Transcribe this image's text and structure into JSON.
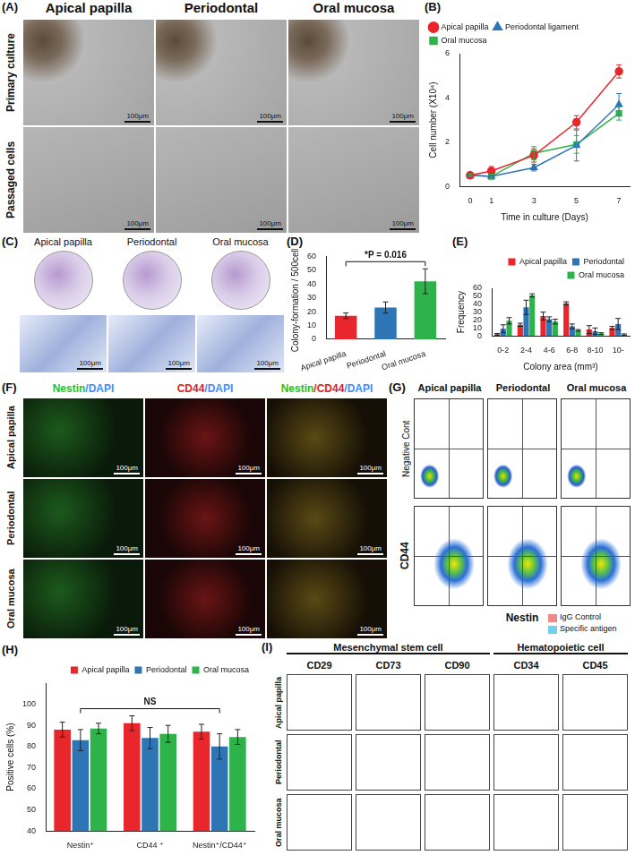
{
  "figure": {
    "A": {
      "title": "(A)",
      "columns": [
        "Apical papilla",
        "Periodontal",
        "Oral mucosa"
      ],
      "rows": [
        "Primary culture",
        "Passaged cells"
      ],
      "scale_bar": "100μm"
    },
    "C": {
      "title": "(C)",
      "columns": [
        "Apical papilla",
        "Periodontal",
        "Oral mucosa"
      ],
      "scale_bar": "100μm"
    },
    "F": {
      "title": "(F)",
      "headers": [
        [
          {
            "text": "Nestin",
            "color": "#22c322"
          },
          {
            "text": "/DAPI",
            "color": "#3f8cff"
          }
        ],
        [
          {
            "text": "CD44",
            "color": "#e02020"
          },
          {
            "text": "/DAPI",
            "color": "#3f8cff"
          }
        ],
        [
          {
            "text": "Nestin",
            "color": "#22c322"
          },
          {
            "text": "/CD44",
            "color": "#e02020"
          },
          {
            "text": "/DAPI",
            "color": "#3f8cff"
          }
        ]
      ],
      "rows": [
        "Apical papilla",
        "Periodontal",
        "Oral mucosa"
      ],
      "scale_bar": "100μm"
    },
    "G": {
      "title": "(G)",
      "columns": [
        "Apical papilla",
        "Periodontal",
        "Oral mucosa"
      ],
      "row_label": "Negative Cont",
      "y_label": "CD44",
      "x_label": "Nestin"
    },
    "I": {
      "title": "(I)",
      "groups": [
        {
          "text": "Mesenchymal stem cell",
          "columns": [
            "CD29",
            "CD73",
            "CD90"
          ]
        },
        {
          "text": "Hematopoietic cell",
          "columns": [
            "CD34",
            "CD45"
          ]
        }
      ],
      "rows": [
        "Apical papilla",
        "Periodontal",
        "Oral mucosa"
      ],
      "key": [
        {
          "name": "IgG Control",
          "color": "#f08a8a"
        },
        {
          "name": "Specific antigen",
          "color": "#6fd0f0"
        }
      ]
    }
  },
  "chart_data": [
    {
      "type": "line",
      "title": "(B)",
      "x_label": "Time in culture (Days)",
      "y_label": "Cell number (X10⁴)",
      "x": [
        0,
        1,
        3,
        5,
        7
      ],
      "xlim": [
        -0.5,
        7.5
      ],
      "xticks": [
        0,
        1,
        3,
        5,
        7
      ],
      "ylim": [
        0,
        6
      ],
      "yticks": [
        0,
        2,
        4,
        6
      ],
      "grid": false,
      "legend": "upper left",
      "series": [
        {
          "name": "Apical papilla",
          "color": "#e8262b",
          "marker": "circle",
          "values": [
            0.5,
            0.7,
            1.4,
            2.9,
            5.2
          ],
          "errors": [
            0.05,
            0.2,
            0.3,
            0.3,
            0.3
          ]
        },
        {
          "name": "Periodontal ligament",
          "color": "#2e75b6",
          "marker": "triangle",
          "values": [
            0.5,
            0.45,
            0.85,
            1.85,
            3.7
          ],
          "errors": [
            0.05,
            0.1,
            0.15,
            0.7,
            0.5
          ]
        },
        {
          "name": "Oral mucosa",
          "color": "#2db34a",
          "marker": "rect",
          "values": [
            0.5,
            0.45,
            1.5,
            1.9,
            3.3
          ],
          "errors": [
            0.05,
            0.1,
            0.3,
            0.4,
            0.3
          ]
        }
      ]
    },
    {
      "type": "bar",
      "title": "(D)",
      "categories": [
        "Apical papilla",
        "Periodontal",
        "Oral mucosa"
      ],
      "values": [
        17,
        23,
        42
      ],
      "errors": [
        2,
        4,
        9
      ],
      "colors": [
        "#e8262b",
        "#2e75b6",
        "#2db34a"
      ],
      "y_label": "Colony-formation / 500cells",
      "ylim": [
        0,
        60
      ],
      "yticks": [
        0,
        10,
        20,
        30,
        40,
        50,
        60
      ],
      "grid": false,
      "annotations": [
        {
          "text": "*P = 0.016",
          "from": "Apical papilla",
          "to": "Oral mucosa"
        }
      ]
    },
    {
      "type": "bar",
      "title": "(E)",
      "categories": [
        "0-2",
        "2-4",
        "4-6",
        "6-8",
        "8-10",
        "10-"
      ],
      "x_label": "Colony area (mm³)",
      "y_label": "Frequency",
      "ylim": [
        0,
        60
      ],
      "yticks": [
        0,
        10,
        20,
        30,
        40,
        50,
        60
      ],
      "grid": false,
      "legend": "upper right",
      "series": [
        {
          "name": "Apical papilla",
          "color": "#e8262b",
          "values": [
            2,
            14,
            25,
            41,
            8,
            10
          ],
          "errors": [
            1,
            2,
            5,
            2,
            5,
            2
          ]
        },
        {
          "name": "Periodontal",
          "color": "#2e75b6",
          "values": [
            9,
            36,
            21,
            12,
            6,
            15
          ],
          "errors": [
            5,
            9,
            3,
            3,
            4,
            7
          ]
        },
        {
          "name": "Oral mucosa",
          "color": "#2db34a",
          "values": [
            19,
            51,
            18,
            7,
            3,
            1.5
          ],
          "errors": [
            4,
            2,
            3,
            1,
            1,
            1
          ]
        }
      ]
    },
    {
      "type": "bar",
      "title": "(H)",
      "categories": [
        "Nestin⁺",
        "CD44 ⁺",
        "Nestin⁺/CD44⁺"
      ],
      "y_label": "Positive cells (%)",
      "ylim": [
        40,
        110
      ],
      "yticks": [
        40,
        50,
        60,
        70,
        80,
        90,
        100
      ],
      "grid": false,
      "legend": "upper right",
      "series": [
        {
          "name": "Apical papilla",
          "color": "#e8262b",
          "values": [
            88,
            91,
            87
          ],
          "errors": [
            3.5,
            3.5,
            3.5
          ]
        },
        {
          "name": "Periodontal",
          "color": "#2e75b6",
          "values": [
            83,
            84,
            80
          ],
          "errors": [
            5,
            5,
            6
          ]
        },
        {
          "name": "Oral mucosa",
          "color": "#2db34a",
          "values": [
            88.5,
            86,
            84.5
          ],
          "errors": [
            2.5,
            4,
            3.5
          ]
        }
      ],
      "annotations": [
        {
          "text": "NS",
          "from": "Nestin⁺",
          "to": "Nestin⁺/CD44⁺"
        }
      ]
    }
  ]
}
